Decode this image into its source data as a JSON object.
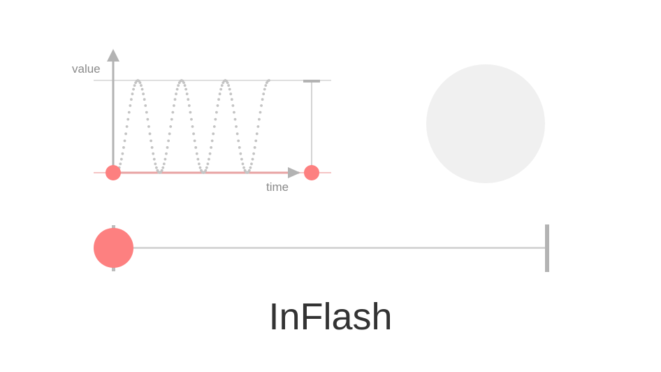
{
  "graph": {
    "y_label": "value",
    "x_label": "time"
  },
  "easing": {
    "name": "InFlash"
  },
  "colors": {
    "accent": "#fd8080",
    "curve": "#c4c4c4",
    "axis": "#b3b3b3",
    "guide": "#cccccc",
    "preview": "#f0f0f0",
    "text": "#333333"
  },
  "animation": {
    "progress": 0
  }
}
